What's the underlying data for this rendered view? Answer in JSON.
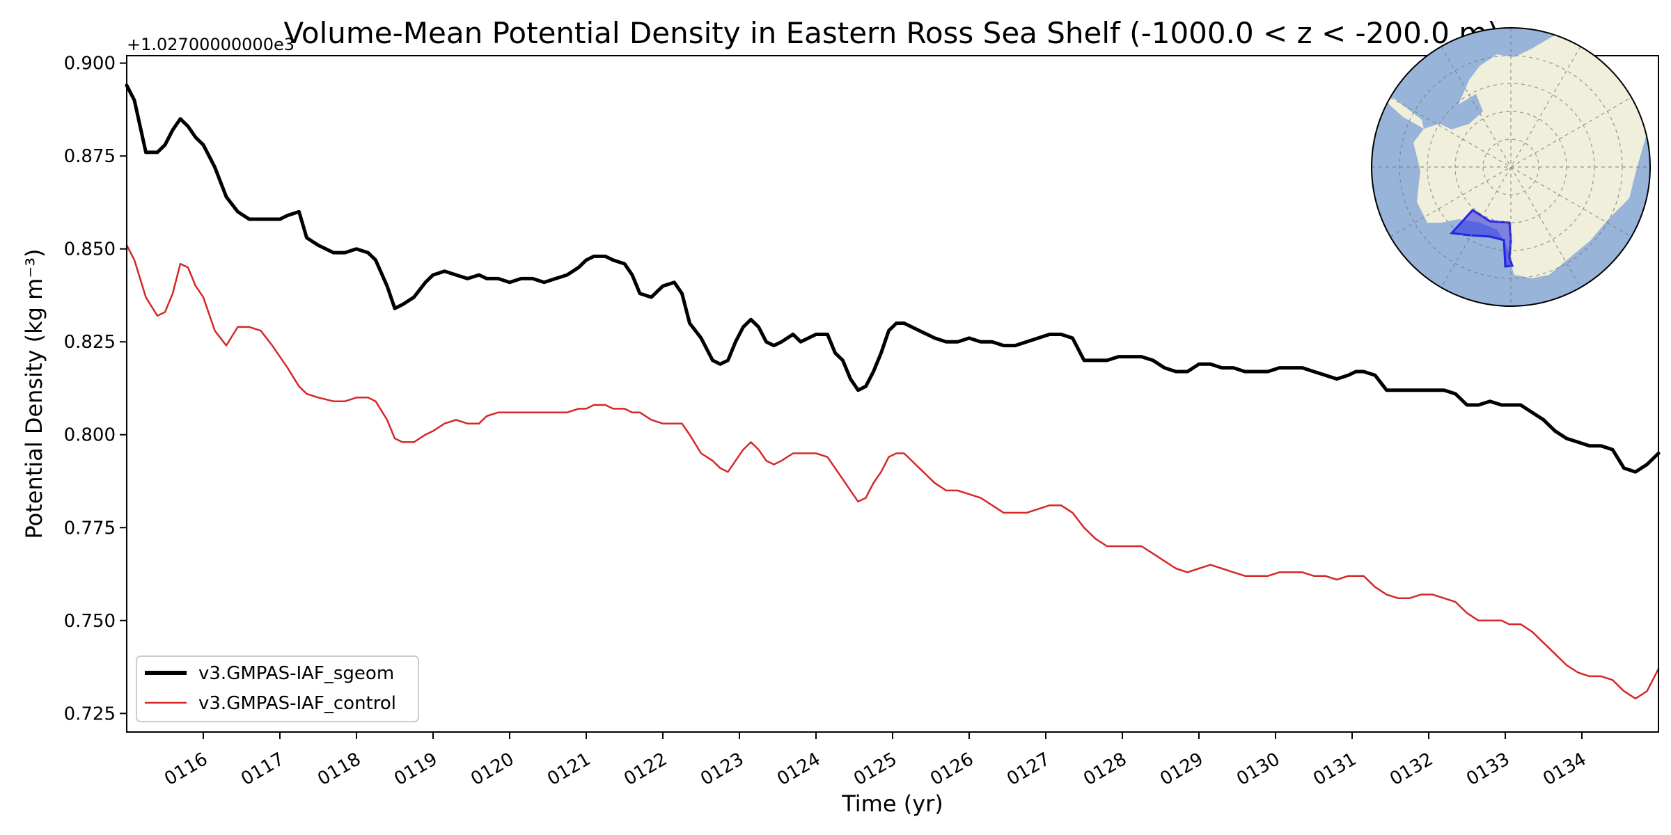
{
  "chart_data": {
    "type": "line",
    "title": "Volume-Mean Potential Density in Eastern Ross Sea Shelf (-1000.0 < z < -200.0 m)",
    "xlabel": "Time (yr)",
    "ylabel": "Potential Density (kg m⁻³)",
    "y_offset_label": "+1.02700000000e3",
    "xlim": [
      115.0,
      135.0
    ],
    "ylim": [
      0.72,
      0.902
    ],
    "x_ticks": [
      116,
      117,
      118,
      119,
      120,
      121,
      122,
      123,
      124,
      125,
      126,
      127,
      128,
      129,
      130,
      131,
      132,
      133,
      134
    ],
    "x_tick_labels": [
      "0116",
      "0117",
      "0118",
      "0119",
      "0120",
      "0121",
      "0122",
      "0123",
      "0124",
      "0125",
      "0126",
      "0127",
      "0128",
      "0129",
      "0130",
      "0131",
      "0132",
      "0133",
      "0134"
    ],
    "y_ticks": [
      0.725,
      0.75,
      0.775,
      0.8,
      0.825,
      0.85,
      0.875,
      0.9
    ],
    "y_tick_labels": [
      "0.725",
      "0.750",
      "0.775",
      "0.800",
      "0.825",
      "0.850",
      "0.875",
      "0.900"
    ],
    "grid": false,
    "legend_position": "lower-left",
    "series": [
      {
        "name": "v3.GMPAS-IAF_sgeom",
        "color": "#000000",
        "x": [
          115.0,
          115.1,
          115.25,
          115.4,
          115.5,
          115.6,
          115.7,
          115.8,
          115.9,
          116.0,
          116.15,
          116.3,
          116.45,
          116.6,
          116.75,
          116.9,
          117.0,
          117.1,
          117.25,
          117.35,
          117.5,
          117.7,
          117.85,
          118.0,
          118.15,
          118.25,
          118.4,
          118.5,
          118.6,
          118.75,
          118.9,
          119.0,
          119.15,
          119.3,
          119.45,
          119.6,
          119.7,
          119.85,
          120.0,
          120.15,
          120.3,
          120.45,
          120.6,
          120.75,
          120.9,
          121.0,
          121.1,
          121.25,
          121.35,
          121.5,
          121.6,
          121.7,
          121.85,
          122.0,
          122.15,
          122.25,
          122.35,
          122.5,
          122.65,
          122.75,
          122.85,
          122.95,
          123.05,
          123.15,
          123.25,
          123.35,
          123.45,
          123.55,
          123.7,
          123.8,
          123.9,
          124.0,
          124.15,
          124.25,
          124.35,
          124.45,
          124.55,
          124.65,
          124.75,
          124.85,
          124.95,
          125.05,
          125.15,
          125.25,
          125.35,
          125.45,
          125.55,
          125.7,
          125.85,
          126.0,
          126.15,
          126.3,
          126.45,
          126.6,
          126.75,
          126.9,
          127.05,
          127.2,
          127.35,
          127.5,
          127.65,
          127.8,
          127.95,
          128.1,
          128.25,
          128.4,
          128.55,
          128.7,
          128.85,
          129.0,
          129.15,
          129.3,
          129.45,
          129.6,
          129.75,
          129.9,
          130.05,
          130.2,
          130.35,
          130.5,
          130.65,
          130.8,
          130.95,
          131.05,
          131.15,
          131.3,
          131.45,
          131.6,
          131.75,
          131.9,
          132.05,
          132.2,
          132.35,
          132.5,
          132.65,
          132.8,
          132.95,
          133.05,
          133.2,
          133.35,
          133.5,
          133.65,
          133.8,
          133.95,
          134.1,
          134.25,
          134.4,
          134.55,
          134.7,
          134.85,
          135.0
        ],
        "values": [
          0.894,
          0.89,
          0.876,
          0.876,
          0.878,
          0.882,
          0.885,
          0.883,
          0.88,
          0.878,
          0.872,
          0.864,
          0.86,
          0.858,
          0.858,
          0.858,
          0.858,
          0.859,
          0.86,
          0.853,
          0.851,
          0.849,
          0.849,
          0.85,
          0.849,
          0.847,
          0.84,
          0.834,
          0.835,
          0.837,
          0.841,
          0.843,
          0.844,
          0.843,
          0.842,
          0.843,
          0.842,
          0.842,
          0.841,
          0.842,
          0.842,
          0.841,
          0.842,
          0.843,
          0.845,
          0.847,
          0.848,
          0.848,
          0.847,
          0.846,
          0.843,
          0.838,
          0.837,
          0.84,
          0.841,
          0.838,
          0.83,
          0.826,
          0.82,
          0.819,
          0.82,
          0.825,
          0.829,
          0.831,
          0.829,
          0.825,
          0.824,
          0.825,
          0.827,
          0.825,
          0.826,
          0.827,
          0.827,
          0.822,
          0.82,
          0.815,
          0.812,
          0.813,
          0.817,
          0.822,
          0.828,
          0.83,
          0.83,
          0.829,
          0.828,
          0.827,
          0.826,
          0.825,
          0.825,
          0.826,
          0.825,
          0.825,
          0.824,
          0.824,
          0.825,
          0.826,
          0.827,
          0.827,
          0.826,
          0.82,
          0.82,
          0.82,
          0.821,
          0.821,
          0.821,
          0.82,
          0.818,
          0.817,
          0.817,
          0.819,
          0.819,
          0.818,
          0.818,
          0.817,
          0.817,
          0.817,
          0.818,
          0.818,
          0.818,
          0.817,
          0.816,
          0.815,
          0.816,
          0.817,
          0.817,
          0.816,
          0.812,
          0.812,
          0.812,
          0.812,
          0.812,
          0.812,
          0.811,
          0.808,
          0.808,
          0.809,
          0.808,
          0.808,
          0.808,
          0.806,
          0.804,
          0.801,
          0.799,
          0.798,
          0.797,
          0.797,
          0.796,
          0.791,
          0.79,
          0.792,
          0.795
        ]
      },
      {
        "name": "v3.GMPAS-IAF_control",
        "color": "#d62728",
        "x": [
          115.0,
          115.1,
          115.25,
          115.4,
          115.5,
          115.6,
          115.7,
          115.8,
          115.9,
          116.0,
          116.15,
          116.3,
          116.45,
          116.6,
          116.75,
          116.9,
          117.0,
          117.1,
          117.25,
          117.35,
          117.5,
          117.7,
          117.85,
          118.0,
          118.15,
          118.25,
          118.4,
          118.5,
          118.6,
          118.75,
          118.9,
          119.0,
          119.15,
          119.3,
          119.45,
          119.6,
          119.7,
          119.85,
          120.0,
          120.15,
          120.3,
          120.45,
          120.6,
          120.75,
          120.9,
          121.0,
          121.1,
          121.25,
          121.35,
          121.5,
          121.6,
          121.7,
          121.85,
          122.0,
          122.15,
          122.25,
          122.35,
          122.5,
          122.65,
          122.75,
          122.85,
          122.95,
          123.05,
          123.15,
          123.25,
          123.35,
          123.45,
          123.55,
          123.7,
          123.8,
          123.9,
          124.0,
          124.15,
          124.25,
          124.35,
          124.45,
          124.55,
          124.65,
          124.75,
          124.85,
          124.95,
          125.05,
          125.15,
          125.25,
          125.35,
          125.45,
          125.55,
          125.7,
          125.85,
          126.0,
          126.15,
          126.3,
          126.45,
          126.6,
          126.75,
          126.9,
          127.05,
          127.2,
          127.35,
          127.5,
          127.65,
          127.8,
          127.95,
          128.1,
          128.25,
          128.4,
          128.55,
          128.7,
          128.85,
          129.0,
          129.15,
          129.3,
          129.45,
          129.6,
          129.75,
          129.9,
          130.05,
          130.2,
          130.35,
          130.5,
          130.65,
          130.8,
          130.95,
          131.05,
          131.15,
          131.3,
          131.45,
          131.6,
          131.75,
          131.9,
          132.05,
          132.2,
          132.35,
          132.5,
          132.65,
          132.8,
          132.95,
          133.05,
          133.2,
          133.35,
          133.5,
          133.65,
          133.8,
          133.95,
          134.1,
          134.25,
          134.4,
          134.55,
          134.7,
          134.85,
          135.0
        ],
        "values": [
          0.851,
          0.847,
          0.837,
          0.832,
          0.833,
          0.838,
          0.846,
          0.845,
          0.84,
          0.837,
          0.828,
          0.824,
          0.829,
          0.829,
          0.828,
          0.824,
          0.821,
          0.818,
          0.813,
          0.811,
          0.81,
          0.809,
          0.809,
          0.81,
          0.81,
          0.809,
          0.804,
          0.799,
          0.798,
          0.798,
          0.8,
          0.801,
          0.803,
          0.804,
          0.803,
          0.803,
          0.805,
          0.806,
          0.806,
          0.806,
          0.806,
          0.806,
          0.806,
          0.806,
          0.807,
          0.807,
          0.808,
          0.808,
          0.807,
          0.807,
          0.806,
          0.806,
          0.804,
          0.803,
          0.803,
          0.803,
          0.8,
          0.795,
          0.793,
          0.791,
          0.79,
          0.793,
          0.796,
          0.798,
          0.796,
          0.793,
          0.792,
          0.793,
          0.795,
          0.795,
          0.795,
          0.795,
          0.794,
          0.791,
          0.788,
          0.785,
          0.782,
          0.783,
          0.787,
          0.79,
          0.794,
          0.795,
          0.795,
          0.793,
          0.791,
          0.789,
          0.787,
          0.785,
          0.785,
          0.784,
          0.783,
          0.781,
          0.779,
          0.779,
          0.779,
          0.78,
          0.781,
          0.781,
          0.779,
          0.775,
          0.772,
          0.77,
          0.77,
          0.77,
          0.77,
          0.768,
          0.766,
          0.764,
          0.763,
          0.764,
          0.765,
          0.764,
          0.763,
          0.762,
          0.762,
          0.762,
          0.763,
          0.763,
          0.763,
          0.762,
          0.762,
          0.761,
          0.762,
          0.762,
          0.762,
          0.759,
          0.757,
          0.756,
          0.756,
          0.757,
          0.757,
          0.756,
          0.755,
          0.752,
          0.75,
          0.75,
          0.75,
          0.749,
          0.749,
          0.747,
          0.744,
          0.741,
          0.738,
          0.736,
          0.735,
          0.735,
          0.734,
          0.731,
          0.729,
          0.731,
          0.737
        ]
      }
    ]
  },
  "inset_map": {
    "ocean_color": "#98b4d9",
    "land_color": "#efefdc",
    "region_color": "#2424e6"
  }
}
